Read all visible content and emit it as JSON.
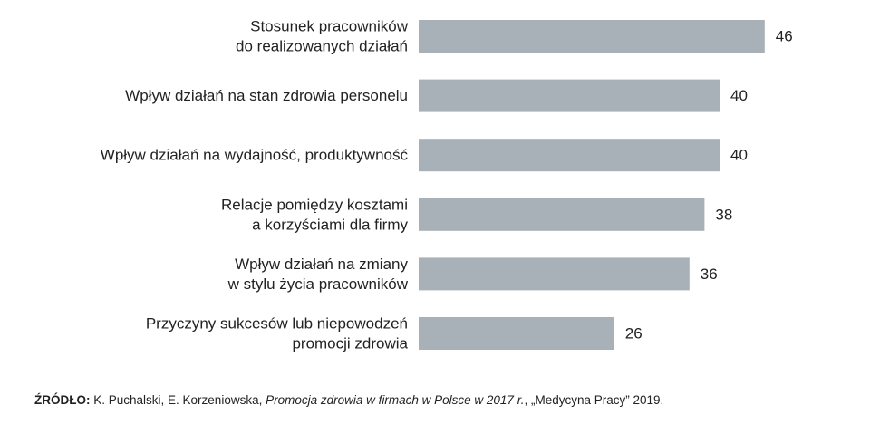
{
  "chart_data": {
    "type": "bar",
    "orientation": "horizontal",
    "categories": [
      [
        "Stosunek pracowników",
        "do realizowanych działań"
      ],
      [
        "Wpływ działań na stan zdrowia personelu"
      ],
      [
        "Wpływ działań na wydajność, produktywność"
      ],
      [
        "Relacje pomiędzy kosztami",
        "a korzyściami dla firmy"
      ],
      [
        "Wpływ działań na zmiany",
        "w stylu życia pracowników"
      ],
      [
        "Przyczyny sukcesów lub niepowodzeń",
        "promocji zdrowia"
      ]
    ],
    "values": [
      46,
      40,
      40,
      38,
      36,
      26
    ],
    "value_labels": [
      "46",
      "40",
      "40",
      "38",
      "36",
      "26"
    ],
    "bar_color": "#a8b1b8",
    "grid": false,
    "legend": "none"
  },
  "source": {
    "prefix": "ŹRÓDŁO:",
    "authors": " K. Puchalski, E. Korzeniowska, ",
    "title": "Promocja zdrowia w firmach w Polsce w 2017 r.",
    "rest": ", „Medycyna Pracy” 2019."
  }
}
